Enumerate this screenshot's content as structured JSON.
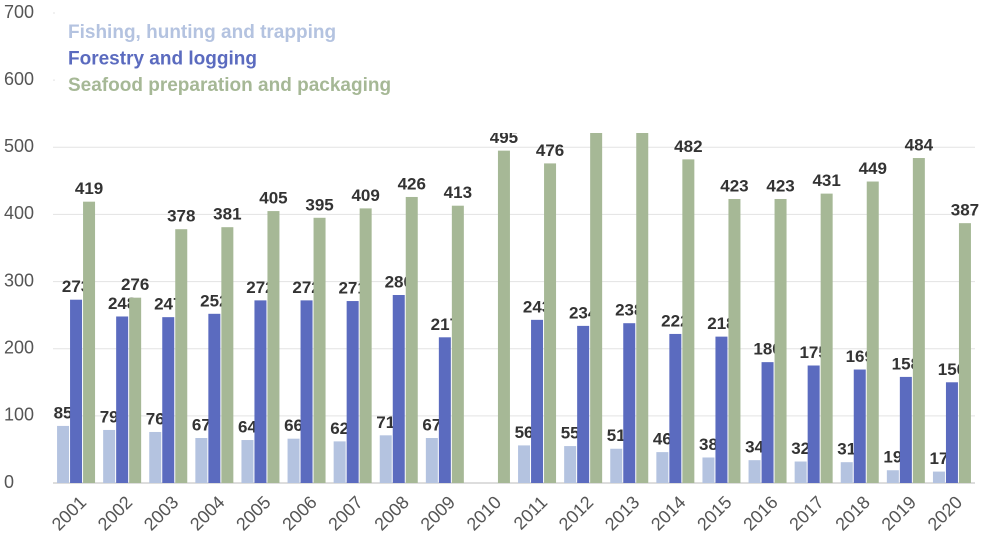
{
  "chart_data": {
    "type": "bar",
    "categories": [
      "2001",
      "2002",
      "2003",
      "2004",
      "2005",
      "2006",
      "2007",
      "2008",
      "2009",
      "2010",
      "2011",
      "2012",
      "2013",
      "2014",
      "2015",
      "2016",
      "2017",
      "2018",
      "2019",
      "2020"
    ],
    "series": [
      {
        "name": "Fishing, hunting and trapping",
        "color": "#b4c3e0",
        "values": [
          85,
          79,
          76,
          67,
          64,
          66,
          62,
          71,
          67,
          null,
          56,
          55,
          51,
          46,
          38,
          34,
          32,
          31,
          19,
          17
        ]
      },
      {
        "name": "Forestry and logging",
        "color": "#5b6bbf",
        "values": [
          273,
          248,
          247,
          252,
          272,
          272,
          271,
          280,
          217,
          null,
          243,
          234,
          238,
          222,
          218,
          180,
          175,
          169,
          158,
          150
        ]
      },
      {
        "name": "Seafood preparation and packaging",
        "color": "#a6b896",
        "values": [
          419,
          276,
          378,
          381,
          405,
          395,
          409,
          426,
          413,
          495,
          476,
          560,
          570,
          482,
          423,
          423,
          431,
          449,
          484,
          387
        ]
      }
    ],
    "ylim": [
      0,
      700
    ],
    "yticks": [
      0,
      100,
      200,
      300,
      400,
      500,
      600,
      700
    ],
    "grid": true,
    "legend": "top-left"
  }
}
